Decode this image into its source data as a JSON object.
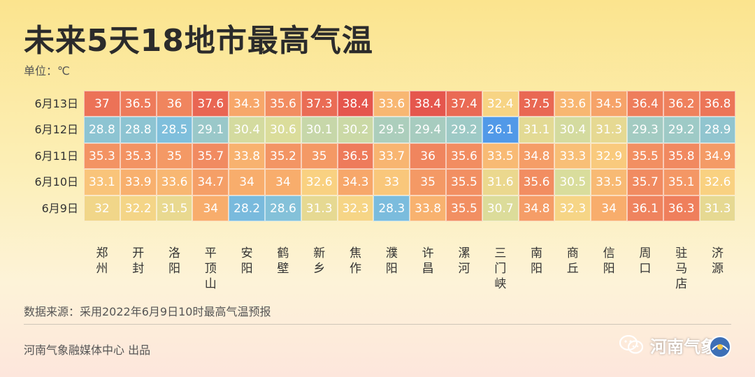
{
  "title": "未来5天18地市最高气温",
  "unit": "单位：℃",
  "source": "数据来源：采用2022年6月9日10时最高气温预报",
  "producer": "河南气象融媒体中心 出品",
  "brand": "河南气象",
  "chart_data": {
    "type": "heatmap",
    "rows": [
      "6月13日",
      "6月12日",
      "6月11日",
      "6月10日",
      "6月9日"
    ],
    "columns": [
      "郑州",
      "开封",
      "洛阳",
      "平顶山",
      "安阳",
      "鹤壁",
      "新乡",
      "焦作",
      "濮阳",
      "许昌",
      "漯河",
      "三门峡",
      "南阳",
      "商丘",
      "信阳",
      "周口",
      "驻马店",
      "济源"
    ],
    "values": [
      [
        37,
        36.5,
        36,
        37.6,
        34.3,
        35.6,
        37.3,
        38.4,
        33.6,
        38.4,
        37.4,
        32.4,
        37.5,
        33.6,
        34.5,
        36.4,
        36.2,
        36.8
      ],
      [
        28.8,
        28.8,
        28.5,
        29.1,
        30.4,
        30.6,
        30.1,
        30.2,
        29.5,
        29.4,
        29.2,
        26.1,
        31.1,
        30.4,
        31.3,
        29.3,
        29.2,
        28.9
      ],
      [
        35.3,
        35.3,
        35,
        35.7,
        33.8,
        35.2,
        35,
        36.5,
        33.7,
        36,
        35.6,
        33.5,
        34.8,
        33.3,
        32.9,
        35.5,
        35.8,
        34.9
      ],
      [
        33.1,
        33.9,
        33.6,
        34.7,
        34,
        34,
        32.6,
        34.3,
        33,
        35,
        35.5,
        31.6,
        35.6,
        30.5,
        33.5,
        35.7,
        35.1,
        32.6
      ],
      [
        32,
        32.2,
        31.5,
        34,
        28.2,
        28.6,
        31.3,
        32.3,
        28.3,
        33.8,
        35.5,
        30.7,
        34.8,
        32.3,
        34,
        36.1,
        36.3,
        31.3
      ]
    ],
    "color_scale": {
      "stops": [
        {
          "value": 26,
          "color": "#4f97e8"
        },
        {
          "value": 28.5,
          "color": "#7fbfdc"
        },
        {
          "value": 30.5,
          "color": "#d9dd9c"
        },
        {
          "value": 32.5,
          "color": "#f9d483"
        },
        {
          "value": 34,
          "color": "#f8ad6c"
        },
        {
          "value": 35.5,
          "color": "#f28f62"
        },
        {
          "value": 38.5,
          "color": "#e5544c"
        }
      ]
    }
  }
}
